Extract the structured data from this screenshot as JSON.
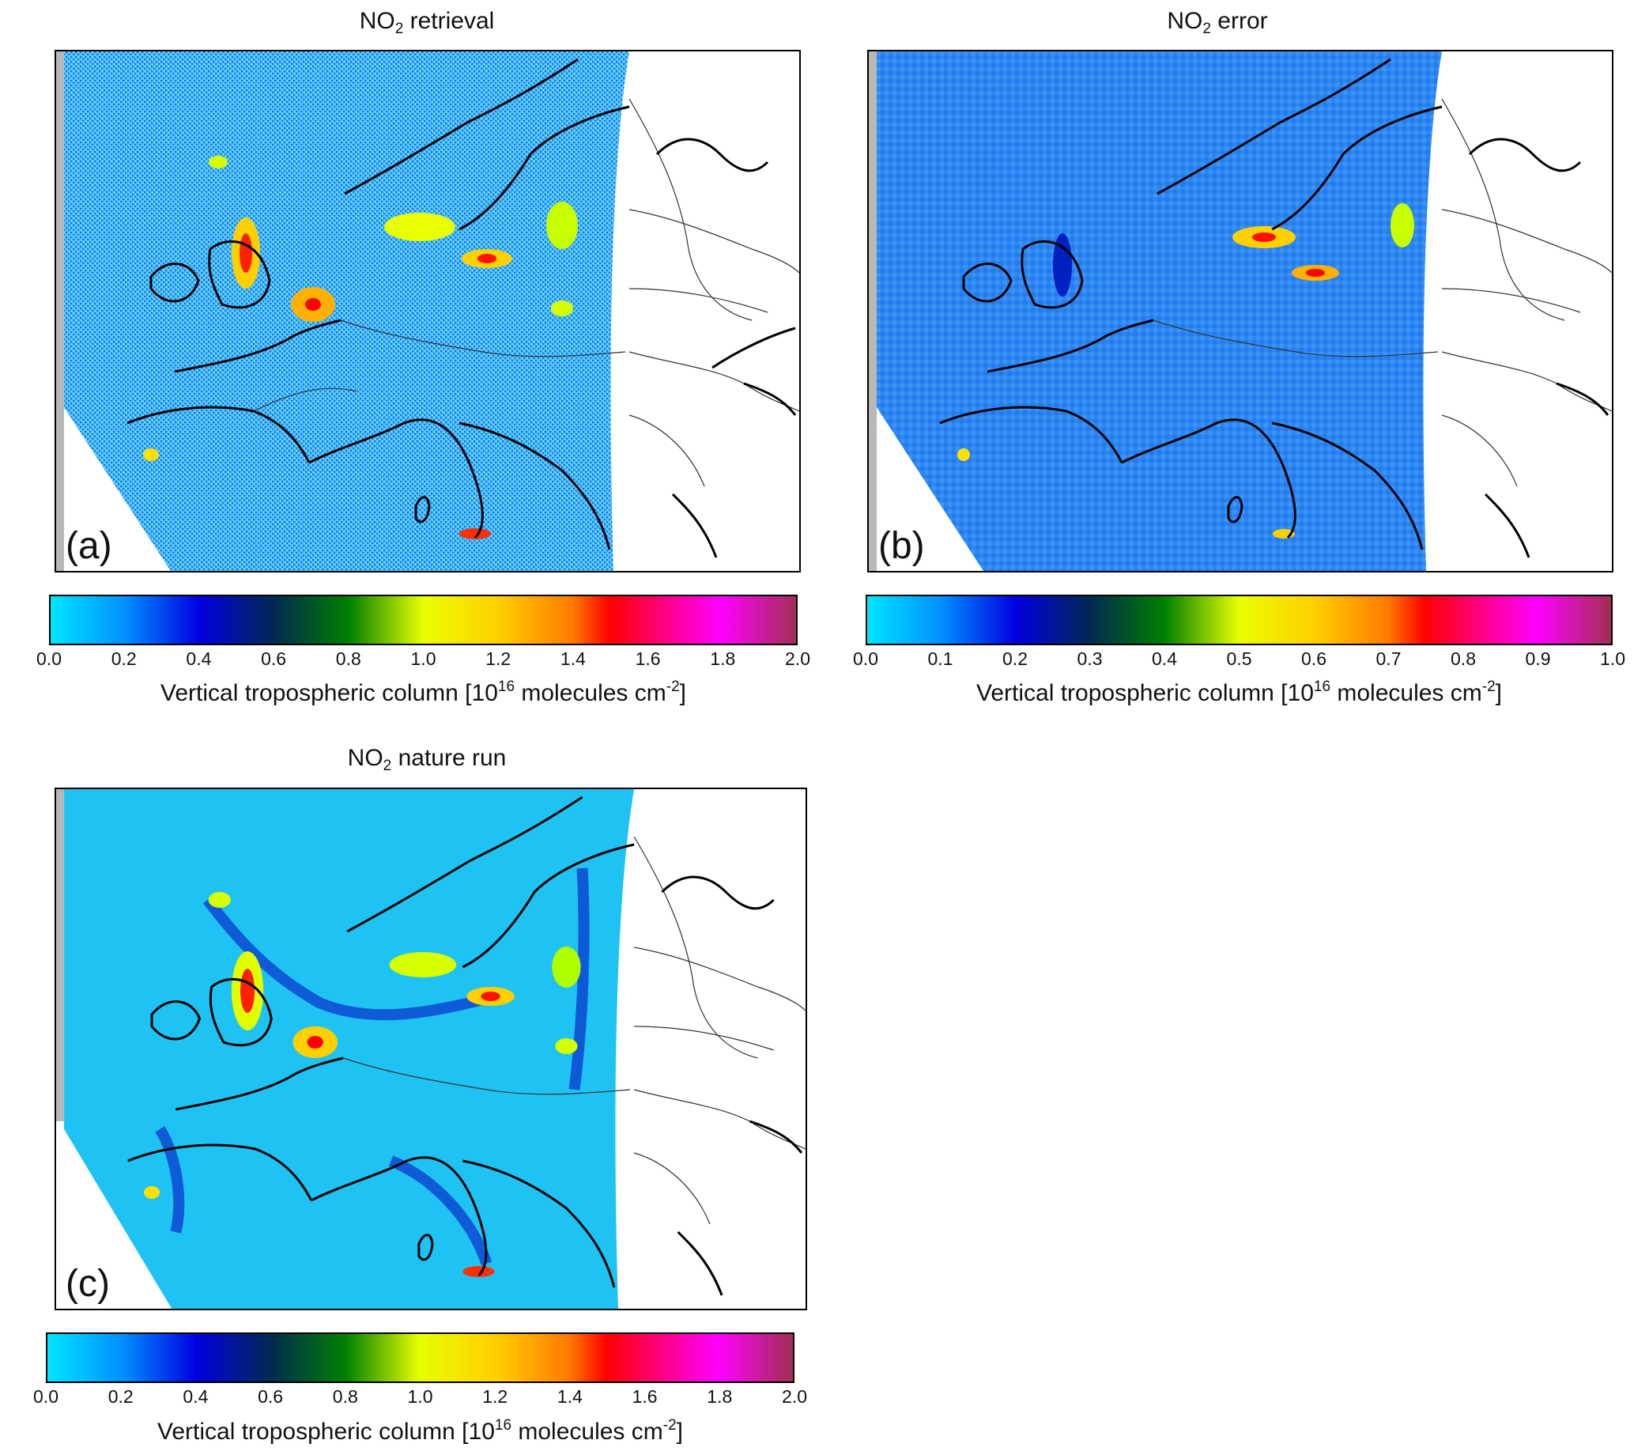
{
  "panels": [
    {
      "title_main": "NO",
      "title_sub": "2",
      "title_rest": " retrieval",
      "label": "(a)",
      "colorbar": {
        "ticks": [
          "0.0",
          "0.2",
          "0.4",
          "0.6",
          "0.8",
          "1.0",
          "1.2",
          "1.4",
          "1.6",
          "1.8",
          "2.0"
        ],
        "label_pre": "Vertical tropospheric column [10",
        "label_sup1": "16",
        "label_mid": " molecules cm",
        "label_sup2": "-2",
        "label_post": "]"
      }
    },
    {
      "title_main": "NO",
      "title_sub": "2",
      "title_rest": " error",
      "label": "(b)",
      "colorbar": {
        "ticks": [
          "0.0",
          "0.1",
          "0.2",
          "0.3",
          "0.4",
          "0.5",
          "0.6",
          "0.7",
          "0.8",
          "0.9",
          "1.0"
        ],
        "label_pre": "Vertical tropospheric column [10",
        "label_sup1": "16",
        "label_mid": " molecules cm",
        "label_sup2": "-2",
        "label_post": "]"
      }
    },
    {
      "title_main": "NO",
      "title_sub": "2",
      "title_rest": " nature run",
      "label": "(c)",
      "colorbar": {
        "ticks": [
          "0.0",
          "0.2",
          "0.4",
          "0.6",
          "0.8",
          "1.0",
          "1.2",
          "1.4",
          "1.6",
          "1.8",
          "2.0"
        ],
        "label_pre": "Vertical tropospheric column [10",
        "label_sup1": "16",
        "label_mid": " molecules cm",
        "label_sup2": "-2",
        "label_post": "]"
      }
    }
  ],
  "colormap": [
    "#00e5ff",
    "#0080ff",
    "#0000d8",
    "#003a60",
    "#008a00",
    "#e8ff00",
    "#ffd000",
    "#ff7a00",
    "#ff0000",
    "#ff00a0",
    "#ff00ff",
    "#a03050"
  ],
  "map": {
    "background_fill_retrieval": "#3fb6f5",
    "background_fill_error": "#2f7ff0",
    "background_fill_nature": "#18bff2",
    "land_outside_swath": "#ffffff",
    "coastline_color": "#000000"
  }
}
